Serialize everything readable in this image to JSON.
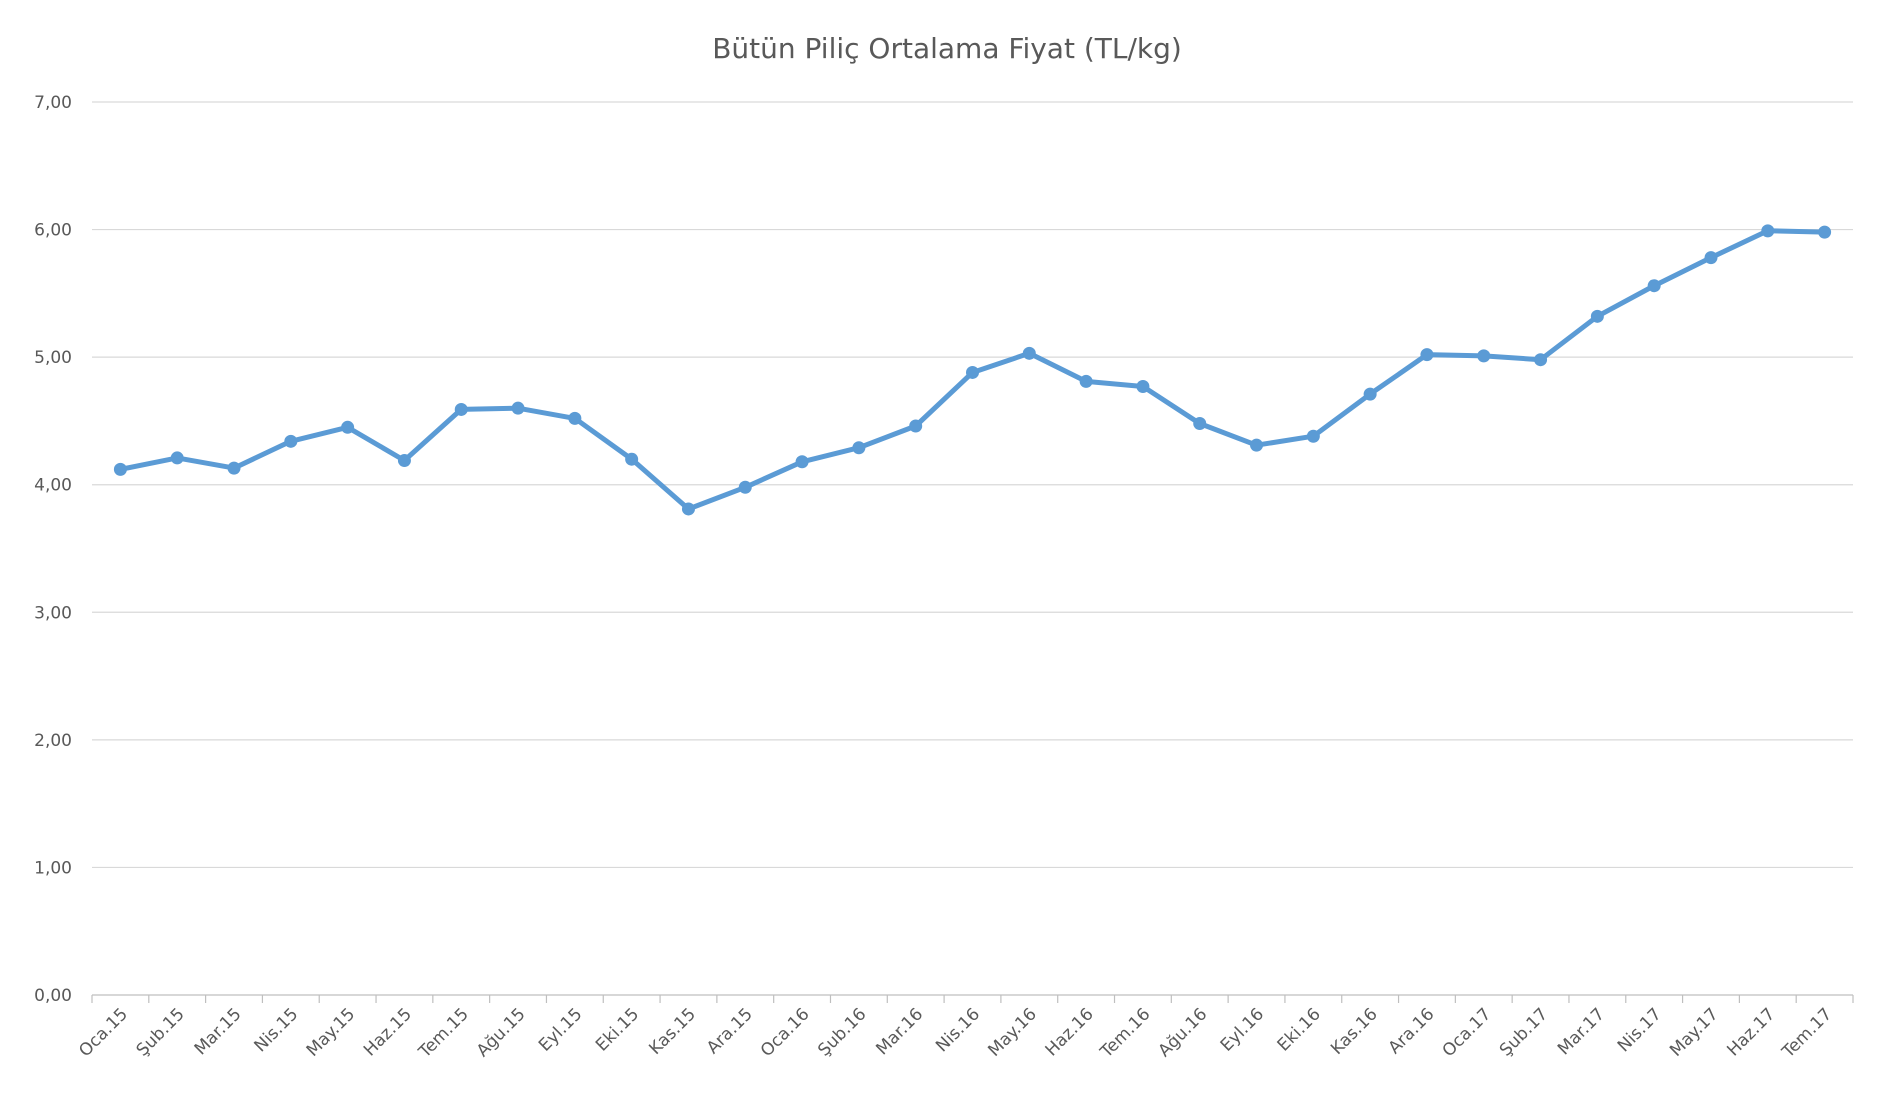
{
  "chart_data": {
    "type": "line",
    "title": "Bütün Piliç Ortalama Fiyat (TL/kg)",
    "xlabel": "",
    "ylabel": "",
    "ylim": [
      0,
      7
    ],
    "yticks": [
      "0,00",
      "1,00",
      "2,00",
      "3,00",
      "4,00",
      "5,00",
      "6,00",
      "7,00"
    ],
    "grid": true,
    "categories": [
      "Oca.15",
      "Şub.15",
      "Mar.15",
      "Nis.15",
      "May.15",
      "Haz.15",
      "Tem.15",
      "Ağu.15",
      "Eyl.15",
      "Eki.15",
      "Kas.15",
      "Ara.15",
      "Oca.16",
      "Şub.16",
      "Mar.16",
      "Nis.16",
      "May.16",
      "Haz.16",
      "Tem.16",
      "Ağu.16",
      "Eyl.16",
      "Eki.16",
      "Kas.16",
      "Ara.16",
      "Oca.17",
      "Şub.17",
      "Mar.17",
      "Nis.17",
      "May.17",
      "Haz.17",
      "Tem.17"
    ],
    "series": [
      {
        "color": "#5b9bd5",
        "values": [
          4.12,
          4.21,
          4.13,
          4.34,
          4.45,
          4.19,
          4.59,
          4.6,
          4.52,
          4.2,
          3.81,
          3.98,
          4.18,
          4.29,
          4.46,
          4.88,
          5.03,
          4.81,
          4.77,
          4.48,
          4.31,
          4.38,
          4.71,
          5.02,
          5.01,
          4.98,
          5.32,
          5.56,
          5.78,
          5.99,
          5.98
        ]
      }
    ]
  }
}
